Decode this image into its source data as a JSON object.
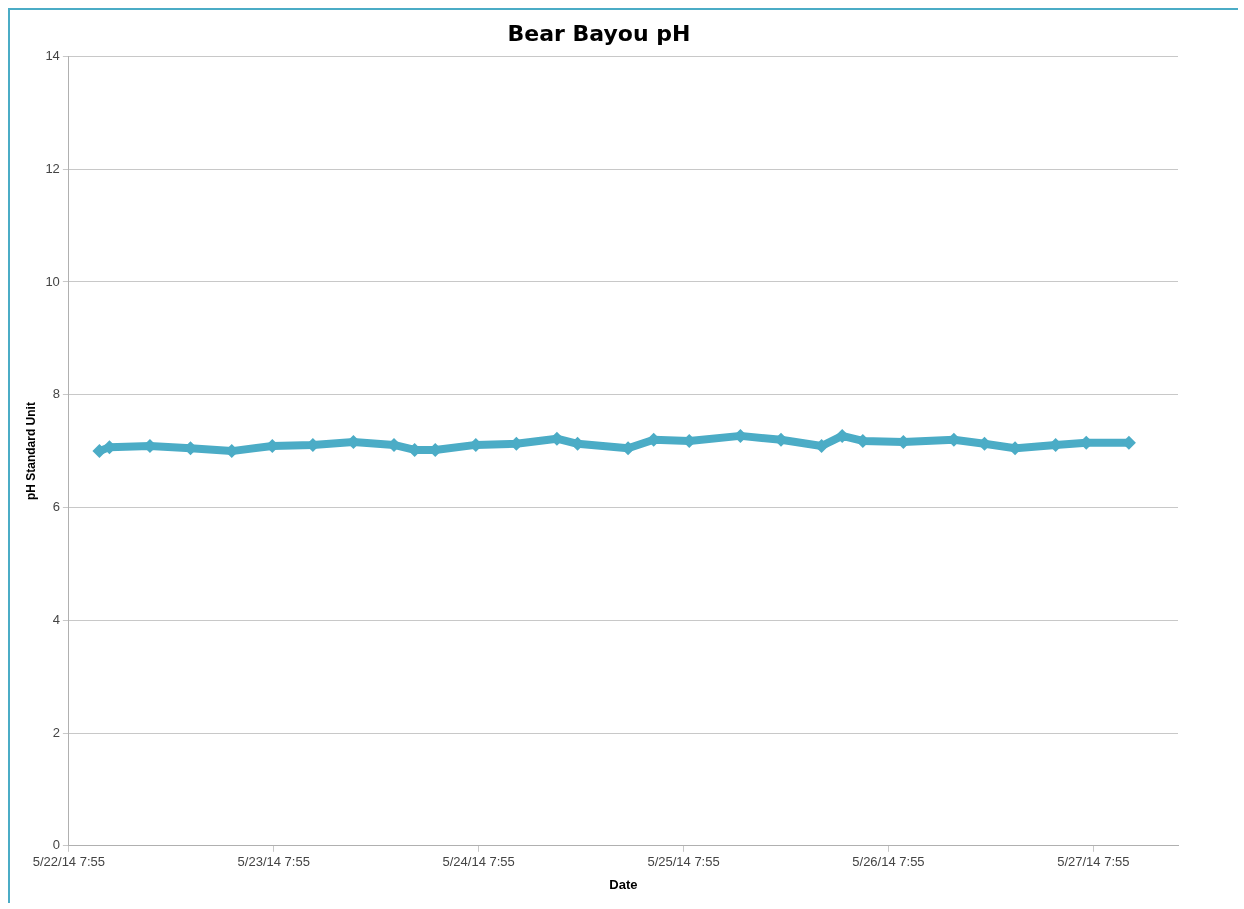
{
  "chart_data": {
    "type": "line",
    "title": "Bear Bayou pH",
    "xlabel": "Date",
    "ylabel": "pH Standard Unit",
    "x": [
      "--05-22T11:30",
      "--05-22T12:40",
      "--05-22T17:25",
      "--05-22T22:10",
      "--05-23T03:00",
      "--05-23T07:45",
      "--05-23T12:30",
      "--05-23T17:15",
      "--05-23T22:00",
      "--05-24T00:25",
      "--05-24T02:50",
      "--05-24T07:35",
      "--05-24T12:20",
      "--05-24T17:05",
      "--05-24T19:30",
      "--05-25T01:25",
      "--05-25T04:25",
      "--05-25T08:35",
      "--05-25T14:35",
      "--05-25T19:20",
      "--05-26T00:05",
      "--05-26T02:30",
      "--05-26T04:55",
      "--05-26T09:40",
      "--05-26T15:35",
      "--05-26T19:10",
      "--05-26T22:45",
      "--05-27T03:30",
      "--05-27T07:05",
      "--05-27T12:05"
    ],
    "series": [
      {
        "color": "#4bacc6",
        "values": [
          7.0,
          7.07,
          7.09,
          7.05,
          7.0,
          7.09,
          7.11,
          7.16,
          7.11,
          7.02,
          7.02,
          7.11,
          7.13,
          7.22,
          7.13,
          7.05,
          7.2,
          7.18,
          7.27,
          7.2,
          7.09,
          7.27,
          7.18,
          7.16,
          7.2,
          7.13,
          7.05,
          7.11,
          7.15,
          7.15
        ]
      }
    ],
    "xlim": [
      "--05-22T07:55",
      "--05-27T17:50"
    ],
    "xticks": [
      {
        "value": "--05-22T07:55",
        "label": "5/22/14 7:55"
      },
      {
        "value": "--05-23T07:55",
        "label": "5/23/14 7:55"
      },
      {
        "value": "--05-24T07:55",
        "label": "5/24/14 7:55"
      },
      {
        "value": "--05-25T07:55",
        "label": "5/25/14 7:55"
      },
      {
        "value": "--05-26T07:55",
        "label": "5/26/14 7:55"
      },
      {
        "value": "--05-27T07:55",
        "label": "5/27/14 7:55"
      }
    ],
    "ylim": [
      0,
      14
    ],
    "yticks": [
      0,
      2,
      4,
      6,
      8,
      10,
      12,
      14
    ],
    "grid": "y",
    "legend": false,
    "marker": "diamond",
    "line_style": "solid"
  }
}
